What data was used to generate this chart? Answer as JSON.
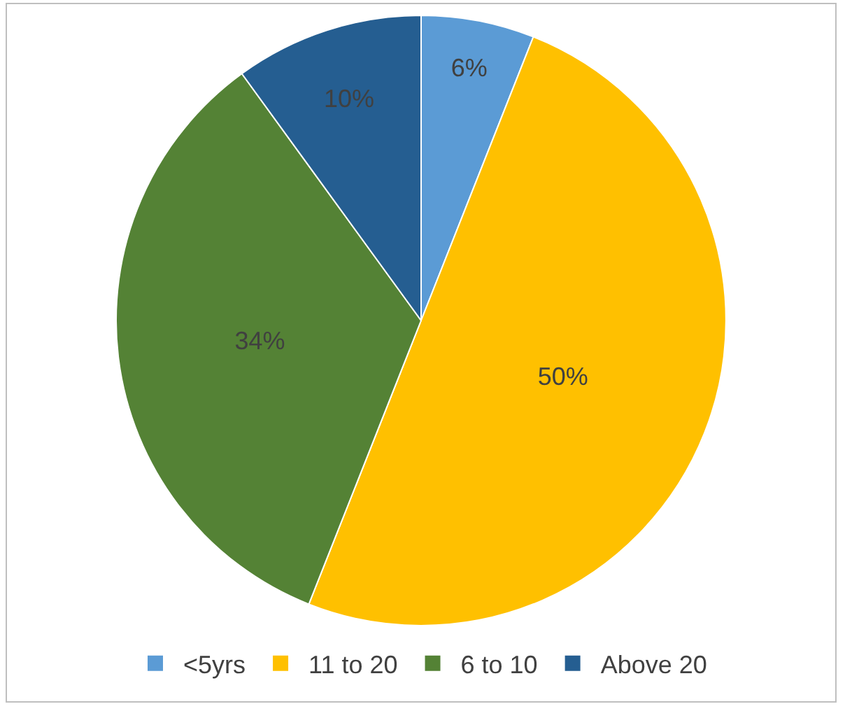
{
  "chart_data": {
    "type": "pie",
    "categories": [
      "<5yrs",
      "11 to 20",
      "6 to 10",
      "Above 20"
    ],
    "values": [
      6,
      50,
      34,
      10
    ],
    "colors": [
      "#5b9bd5",
      "#ffc000",
      "#548235",
      "#255e91"
    ],
    "value_labels": [
      "6%",
      "50%",
      "34%",
      "10%"
    ],
    "legend": "bottom"
  }
}
